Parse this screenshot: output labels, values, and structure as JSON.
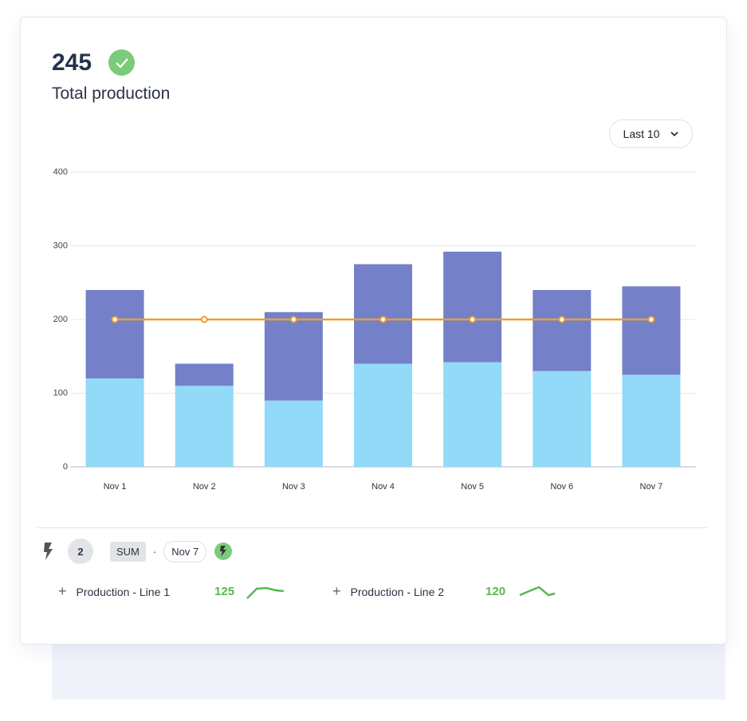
{
  "header": {
    "value": "245",
    "title": "Total production",
    "status_icon": "check-circle-icon"
  },
  "range_dropdown": {
    "label": "Last 10"
  },
  "footer": {
    "count": "2",
    "aggregate": "SUM",
    "separator": "·",
    "date": "Nov 7"
  },
  "legend": [
    {
      "label": "Production - Line 1",
      "value": "125",
      "trend": [
        0.2,
        0.9,
        0.95,
        0.8,
        0.75
      ]
    },
    {
      "label": "Production - Line 2",
      "value": "120",
      "trend": [
        0.3,
        0.6,
        0.9,
        0.4,
        0.5
      ]
    }
  ],
  "colors": {
    "line1": "#93d9f8",
    "line2": "#7480c8",
    "target": "#e8a02c",
    "positive": "#55b94f"
  },
  "chart_data": {
    "type": "bar",
    "stacked": true,
    "categories": [
      "Nov 1",
      "Nov 2",
      "Nov 3",
      "Nov 4",
      "Nov 5",
      "Nov 6",
      "Nov 7"
    ],
    "series": [
      {
        "name": "Production - Line 1",
        "values": [
          120,
          110,
          90,
          140,
          142,
          130,
          125
        ]
      },
      {
        "name": "Production - Line 2",
        "values": [
          120,
          30,
          120,
          135,
          150,
          110,
          120
        ]
      }
    ],
    "target_line": {
      "values": [
        200,
        200,
        200,
        200,
        200,
        200,
        200
      ]
    },
    "ylim": [
      0,
      400
    ],
    "yticks": [
      "0",
      "100",
      "200",
      "300",
      "400"
    ],
    "grid": true
  }
}
